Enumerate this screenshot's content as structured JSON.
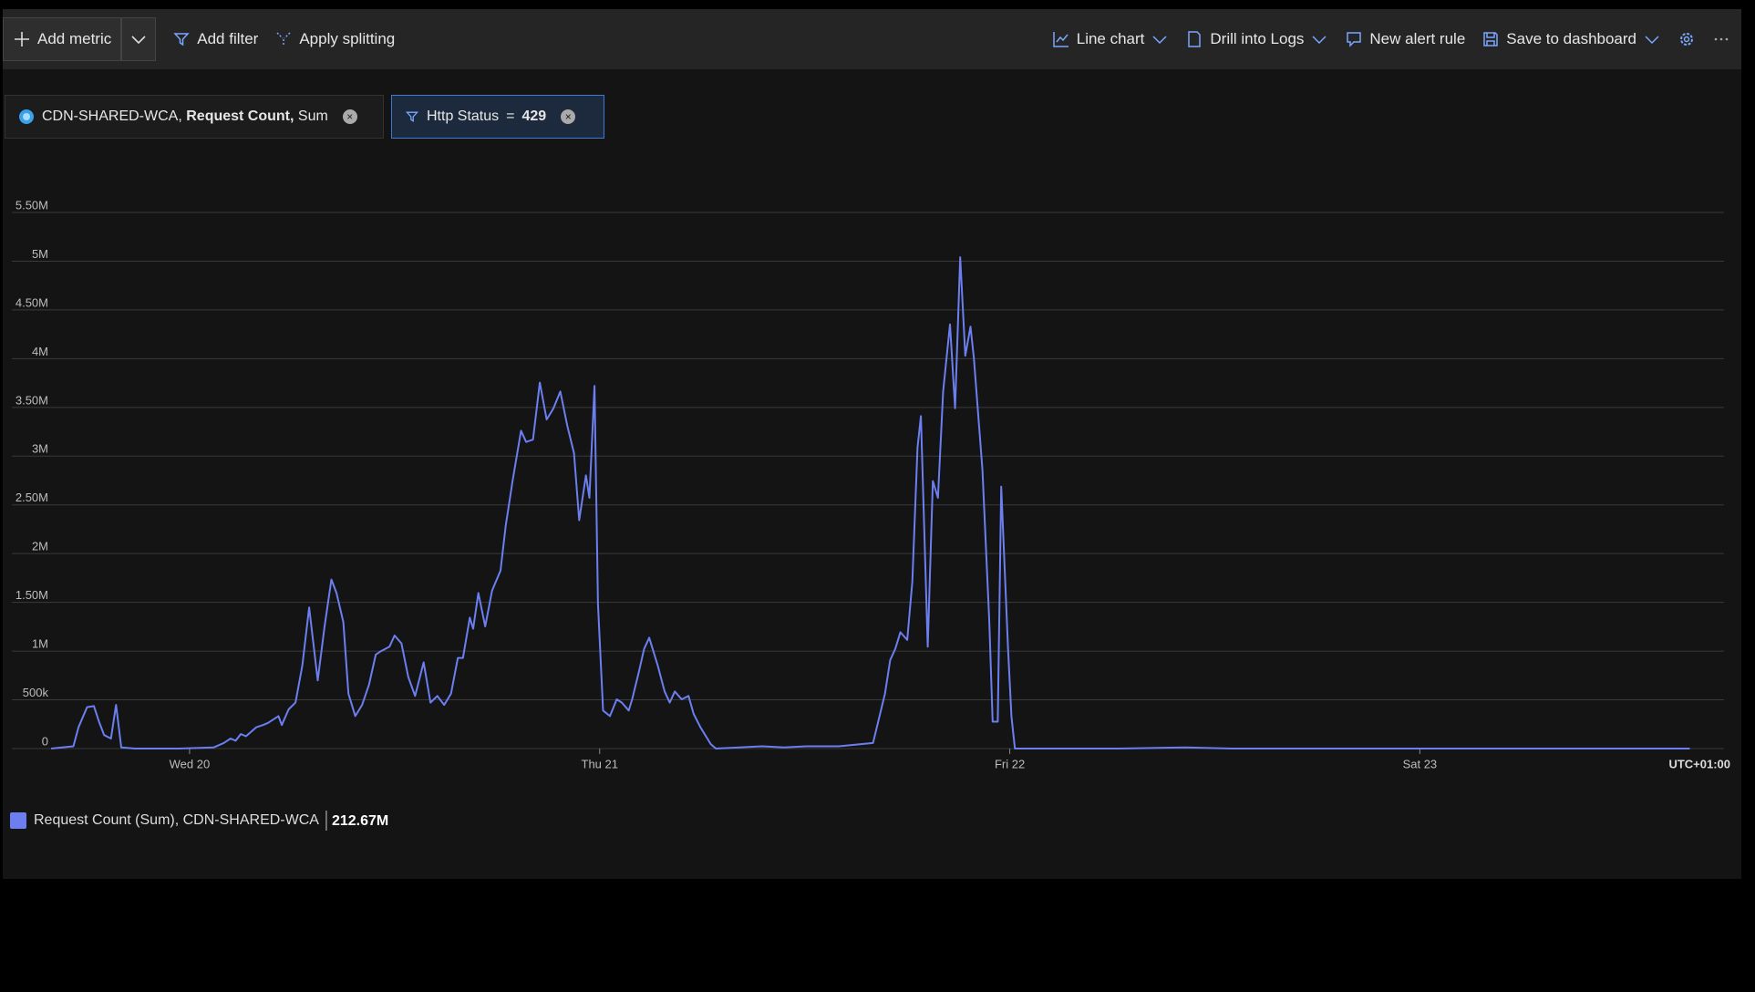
{
  "toolbar": {
    "left": [
      "Add metric",
      "Add filter",
      "Apply splitting"
    ],
    "right": [
      "Line chart",
      "Drill into Logs",
      "New alert rule",
      "Save to dashboard"
    ]
  },
  "pills": {
    "metric": {
      "resource": "CDN-SHARED-WCA,",
      "metric": "Request Count,",
      "aggregation": "Sum"
    },
    "filter": {
      "name": "Http Status",
      "operator": "=",
      "value": "429"
    }
  },
  "chart_data": {
    "type": "line",
    "x": [
      -8.1,
      -6.8,
      -6.5,
      -6.0,
      -5.6,
      -5.3,
      -5.0,
      -4.6,
      -4.3,
      -4.0,
      -3.2,
      -0.6,
      1.4,
      2.0,
      2.4,
      2.7,
      3.0,
      3.3,
      3.9,
      4.3,
      4.6,
      5.2,
      5.4,
      5.8,
      6.2,
      6.6,
      7.0,
      7.5,
      7.9,
      8.3,
      8.6,
      9.0,
      9.3,
      9.7,
      10.1,
      10.5,
      10.9,
      11.2,
      11.7,
      12.0,
      12.4,
      12.8,
      13.2,
      13.7,
      14.1,
      14.5,
      14.9,
      15.3,
      15.7,
      16.0,
      16.4,
      16.6,
      16.9,
      17.3,
      17.7,
      18.2,
      18.5,
      18.9,
      19.4,
      19.7,
      20.1,
      20.5,
      20.9,
      21.3,
      21.7,
      22.1,
      22.5,
      22.8,
      23.2,
      23.4,
      23.7,
      23.9,
      24.2,
      24.6,
      25.0,
      25.3,
      25.7,
      25.9,
      26.3,
      26.6,
      26.9,
      27.4,
      27.8,
      28.1,
      28.4,
      28.8,
      29.2,
      29.5,
      29.9,
      30.5,
      30.8,
      32.2,
      33.5,
      34.8,
      36.1,
      38.0,
      40.0,
      40.7,
      41.0,
      41.3,
      41.6,
      42.0,
      42.3,
      42.6,
      42.8,
      43.2,
      43.5,
      43.8,
      44.1,
      44.5,
      44.8,
      45.1,
      45.4,
      45.7,
      45.9,
      46.4,
      46.8,
      47.0,
      47.3,
      47.5,
      47.9,
      48.1,
      48.3,
      50.5,
      54.4,
      58.3,
      61.0,
      67.5,
      74.1,
      80.6,
      87.8
    ],
    "series": [
      {
        "name": "Request Count (Sum), CDN-SHARED-WCA",
        "color": "#6b7ff0",
        "total_label": "212.67M",
        "values": [
          0,
          23000,
          218000,
          425000,
          436000,
          276000,
          138000,
          103000,
          448000,
          11000,
          0,
          0,
          11000,
          57000,
          103000,
          80000,
          149000,
          126000,
          218000,
          241000,
          264000,
          333000,
          241000,
          402000,
          471000,
          850000,
          1447000,
          700000,
          1252000,
          1734000,
          1596000,
          1297000,
          563000,
          333000,
          448000,
          654000,
          964000,
          999000,
          1045000,
          1160000,
          1079000,
          735000,
          540000,
          884000,
          471000,
          540000,
          448000,
          563000,
          930000,
          930000,
          1343000,
          1229000,
          1596000,
          1252000,
          1619000,
          1826000,
          2285000,
          2744000,
          3261000,
          3146000,
          3169000,
          3755000,
          3376000,
          3491000,
          3663000,
          3318000,
          3031000,
          2342000,
          2802000,
          2572000,
          3720000,
          1481000,
          390000,
          333000,
          505000,
          471000,
          390000,
          505000,
          792000,
          1022000,
          1137000,
          850000,
          586000,
          471000,
          586000,
          505000,
          540000,
          356000,
          218000,
          46000,
          0,
          11000,
          23000,
          11000,
          23000,
          23000,
          57000,
          563000,
          907000,
          1022000,
          1194000,
          1114000,
          1711000,
          3089000,
          3410000,
          1045000,
          2744000,
          2572000,
          3663000,
          4352000,
          3491000,
          5041000,
          4030000,
          4329000,
          4007000,
          2859000,
          1309000,
          276000,
          276000,
          2687000,
          1022000,
          333000,
          0,
          0,
          0,
          11000,
          0,
          0,
          0,
          0,
          0
        ]
      }
    ],
    "xlim": [
      -10.4,
      89.8
    ],
    "xticks": [
      {
        "value": 0,
        "label": "Wed 20"
      },
      {
        "value": 24,
        "label": "Thu 21"
      },
      {
        "value": 48,
        "label": "Fri 22"
      },
      {
        "value": 72,
        "label": "Sat 23"
      }
    ],
    "timezone": "UTC+01:00",
    "ylim": [
      0,
      5500000
    ],
    "yticks": [
      0,
      {
        "value": 500000,
        "label": "500k"
      },
      {
        "value": 1000000,
        "label": "1M"
      },
      {
        "value": 1500000,
        "label": "1.50M"
      },
      {
        "value": 2000000,
        "label": "2M"
      },
      {
        "value": 2500000,
        "label": "2.50M"
      },
      {
        "value": 3000000,
        "label": "3M"
      },
      {
        "value": 3500000,
        "label": "3.50M"
      },
      {
        "value": 4000000,
        "label": "4M"
      },
      {
        "value": 4500000,
        "label": "4.50M"
      },
      {
        "value": 5000000,
        "label": "5M"
      },
      {
        "value": 5500000,
        "label": "5.50M"
      }
    ],
    "grid": true
  }
}
